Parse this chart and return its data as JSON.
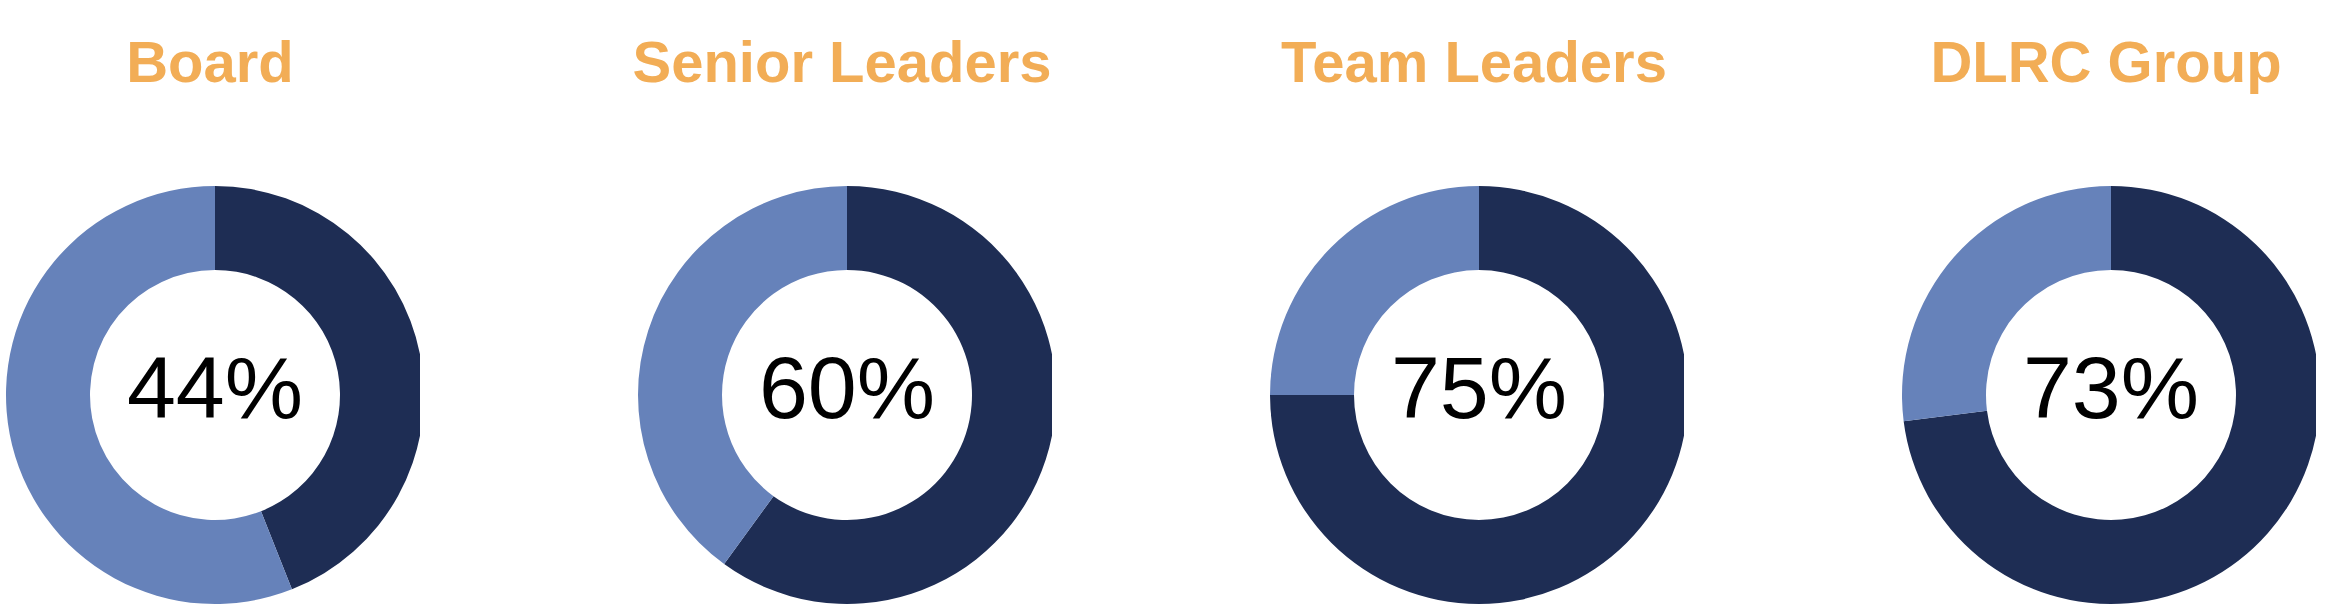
{
  "chart_data": [
    {
      "type": "donut",
      "title": "Board",
      "categories": [
        null,
        null
      ],
      "values": [
        44,
        56
      ],
      "colors": [
        "#1e2d54",
        "#6682ba"
      ],
      "value_labels": [
        "44%",
        null
      ]
    },
    {
      "type": "donut",
      "title": "Senior Leaders",
      "categories": [
        null,
        null
      ],
      "values": [
        60,
        40
      ],
      "colors": [
        "#1e2d54",
        "#6682ba"
      ],
      "value_labels": [
        "60%",
        null
      ]
    },
    {
      "type": "donut",
      "title": "Team Leaders",
      "categories": [
        null,
        null
      ],
      "values": [
        75,
        25
      ],
      "colors": [
        "#1e2d54",
        "#6682ba"
      ],
      "value_labels": [
        "75%",
        null
      ]
    },
    {
      "type": "donut",
      "title": "DLRC Group",
      "categories": [
        null,
        null
      ],
      "values": [
        73,
        27
      ],
      "colors": [
        "#1e2d54",
        "#6682ba"
      ],
      "value_labels": [
        "73%",
        null
      ]
    }
  ]
}
